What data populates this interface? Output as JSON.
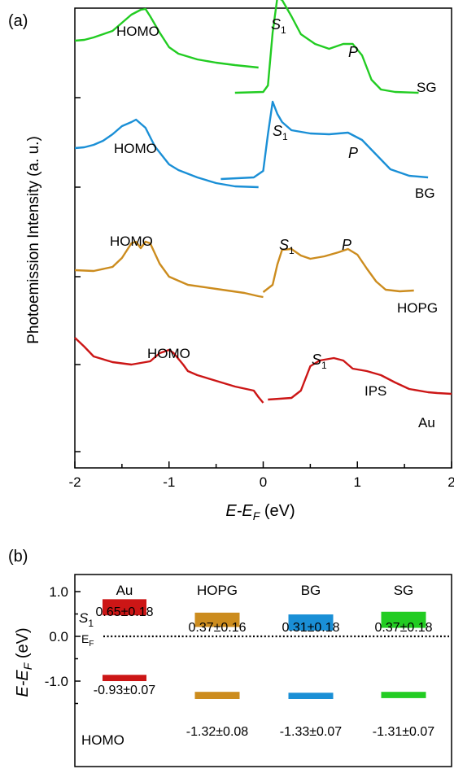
{
  "panel_a": {
    "panel_label": "(a)",
    "ylabel": "Photoemission Intensity (a. u.)",
    "xlabel_main": "E-E",
    "xlabel_sub": "F",
    "xlabel_unit": " (eV)",
    "xticks": [
      "-2",
      "-1",
      "0",
      "1",
      "2"
    ]
  },
  "panel_b": {
    "panel_label": "(b)",
    "ylabel_main": "E-E",
    "ylabel_sub": "F",
    "ylabel_unit": " (eV)",
    "yticks": [
      "1.0",
      "0.0",
      "-1.0"
    ],
    "ef_label_main": "E",
    "ef_label_sub": "F",
    "s1_label_main": "S",
    "s1_label_sub": "1",
    "homo_label": "HOMO"
  },
  "chart_data": [
    {
      "type": "line",
      "xlabel": "E-E_F (eV)",
      "ylabel": "Photoemission Intensity (a. u.)",
      "xlim": [
        -2,
        2
      ],
      "series": [
        {
          "name": "SG",
          "color": "#22cc22",
          "labels": {
            "homo": "HOMO",
            "s1": "S",
            "p": "P"
          },
          "segments": [
            [
              [
                -2.0,
                0.9
              ],
              [
                -1.9,
                0.91
              ],
              [
                -1.8,
                0.94
              ],
              [
                -1.7,
                0.98
              ],
              [
                -1.6,
                1.02
              ],
              [
                -1.5,
                1.12
              ],
              [
                -1.4,
                1.22
              ],
              [
                -1.3,
                1.28
              ],
              [
                -1.25,
                1.29
              ],
              [
                -1.2,
                1.2
              ],
              [
                -1.1,
                1.0
              ],
              [
                -1.0,
                0.82
              ],
              [
                -0.9,
                0.74
              ],
              [
                -0.7,
                0.67
              ],
              [
                -0.5,
                0.63
              ],
              [
                -0.3,
                0.6
              ],
              [
                -0.05,
                0.57
              ]
            ],
            [
              [
                -0.3,
                0.26
              ],
              [
                0.0,
                0.27
              ],
              [
                0.05,
                0.35
              ],
              [
                0.1,
                1.0
              ],
              [
                0.15,
                1.43
              ],
              [
                0.2,
                1.4
              ],
              [
                0.3,
                1.2
              ],
              [
                0.4,
                0.98
              ],
              [
                0.55,
                0.86
              ],
              [
                0.7,
                0.8
              ],
              [
                0.85,
                0.86
              ],
              [
                0.95,
                0.86
              ],
              [
                1.05,
                0.72
              ],
              [
                1.15,
                0.42
              ],
              [
                1.25,
                0.3
              ],
              [
                1.4,
                0.27
              ],
              [
                1.65,
                0.26
              ]
            ]
          ]
        },
        {
          "name": "BG",
          "color": "#1a8fd6",
          "labels": {
            "homo": "HOMO",
            "s1": "S",
            "p": "P"
          },
          "segments": [
            [
              [
                -2.0,
                0.88
              ],
              [
                -1.9,
                0.89
              ],
              [
                -1.8,
                0.92
              ],
              [
                -1.7,
                0.97
              ],
              [
                -1.6,
                1.05
              ],
              [
                -1.5,
                1.15
              ],
              [
                -1.4,
                1.2
              ],
              [
                -1.35,
                1.23
              ],
              [
                -1.25,
                1.13
              ],
              [
                -1.15,
                0.9
              ],
              [
                -1.0,
                0.68
              ],
              [
                -0.9,
                0.61
              ],
              [
                -0.7,
                0.52
              ],
              [
                -0.5,
                0.45
              ],
              [
                -0.3,
                0.41
              ],
              [
                -0.05,
                0.4
              ]
            ],
            [
              [
                -0.45,
                0.5
              ],
              [
                -0.1,
                0.52
              ],
              [
                0.0,
                0.6
              ],
              [
                0.05,
                1.05
              ],
              [
                0.1,
                1.45
              ],
              [
                0.15,
                1.3
              ],
              [
                0.2,
                1.2
              ],
              [
                0.3,
                1.1
              ],
              [
                0.5,
                1.06
              ],
              [
                0.7,
                1.05
              ],
              [
                0.9,
                1.07
              ],
              [
                1.05,
                0.98
              ],
              [
                1.2,
                0.8
              ],
              [
                1.35,
                0.62
              ],
              [
                1.55,
                0.54
              ],
              [
                1.75,
                0.52
              ]
            ]
          ]
        },
        {
          "name": "HOPG",
          "color": "#cc8c1e",
          "labels": {
            "homo": "HOMO",
            "s1": "S",
            "p": "P",
            "s1_sub": "1"
          },
          "segments": [
            [
              [
                -2.0,
                0.68
              ],
              [
                -1.8,
                0.67
              ],
              [
                -1.6,
                0.72
              ],
              [
                -1.5,
                0.83
              ],
              [
                -1.4,
                1.01
              ],
              [
                -1.35,
                1.03
              ],
              [
                -1.3,
                0.95
              ],
              [
                -1.25,
                1.03
              ],
              [
                -1.2,
                1.01
              ],
              [
                -1.1,
                0.76
              ],
              [
                -1.0,
                0.6
              ],
              [
                -0.8,
                0.5
              ],
              [
                -0.5,
                0.45
              ],
              [
                -0.2,
                0.4
              ],
              [
                -0.05,
                0.36
              ],
              [
                0.0,
                0.35
              ]
            ],
            [
              [
                0.0,
                0.41
              ],
              [
                0.1,
                0.5
              ],
              [
                0.15,
                0.75
              ],
              [
                0.2,
                0.93
              ],
              [
                0.3,
                0.94
              ],
              [
                0.4,
                0.86
              ],
              [
                0.5,
                0.82
              ],
              [
                0.65,
                0.85
              ],
              [
                0.8,
                0.9
              ],
              [
                0.9,
                0.94
              ],
              [
                1.0,
                0.87
              ],
              [
                1.1,
                0.7
              ],
              [
                1.2,
                0.54
              ],
              [
                1.3,
                0.44
              ],
              [
                1.45,
                0.42
              ],
              [
                1.6,
                0.43
              ]
            ]
          ]
        },
        {
          "name": "Au",
          "color": "#cc1616",
          "labels": {
            "homo": "HOMO",
            "s1": "S",
            "p": "IPS",
            "s1_sub": "1"
          },
          "segments": [
            [
              [
                -2.0,
                1.33
              ],
              [
                -1.9,
                1.22
              ],
              [
                -1.8,
                1.1
              ],
              [
                -1.6,
                1.03
              ],
              [
                -1.4,
                1.0
              ],
              [
                -1.2,
                1.04
              ],
              [
                -1.1,
                1.14
              ],
              [
                -1.0,
                1.18
              ],
              [
                -0.95,
                1.14
              ],
              [
                -0.85,
                1.0
              ],
              [
                -0.8,
                0.92
              ],
              [
                -0.7,
                0.87
              ],
              [
                -0.5,
                0.8
              ],
              [
                -0.3,
                0.73
              ],
              [
                -0.1,
                0.68
              ],
              [
                -0.05,
                0.6
              ],
              [
                0.0,
                0.53
              ]
            ],
            [
              [
                0.05,
                0.57
              ],
              [
                0.3,
                0.59
              ],
              [
                0.4,
                0.68
              ],
              [
                0.5,
                0.98
              ],
              [
                0.6,
                1.05
              ],
              [
                0.75,
                1.08
              ],
              [
                0.85,
                1.05
              ],
              [
                0.95,
                0.95
              ],
              [
                1.1,
                0.92
              ],
              [
                1.25,
                0.87
              ],
              [
                1.4,
                0.78
              ],
              [
                1.55,
                0.7
              ],
              [
                1.75,
                0.66
              ],
              [
                1.85,
                0.65
              ],
              [
                2.0,
                0.64
              ]
            ]
          ]
        }
      ],
      "curve_labels": {
        "SG": "SG",
        "BG": "BG",
        "HOPG": "HOPG",
        "Au": "Au"
      }
    },
    {
      "type": "bar",
      "ylabel": "E-E_F (eV)",
      "ylim": [
        -1.5,
        1.5
      ],
      "yticks": [
        1.0,
        0.0,
        -1.0
      ],
      "categories": [
        "Au",
        "HOPG",
        "BG",
        "SG"
      ],
      "colors": [
        "#cc1616",
        "#cc8c1e",
        "#1a8fd6",
        "#22cc22"
      ],
      "s1": {
        "values": [
          0.65,
          0.37,
          0.31,
          0.37
        ],
        "errors": [
          0.18,
          0.16,
          0.18,
          0.18
        ],
        "labels": [
          "0.65±0.18",
          "0.37±0.16",
          "0.31±0.18",
          "0.37±0.18"
        ]
      },
      "homo": {
        "values": [
          -0.93,
          -1.32,
          -1.33,
          -1.31
        ],
        "errors": [
          0.07,
          0.08,
          0.07,
          0.07
        ],
        "labels": [
          "-0.93±0.07",
          "-1.32±0.08",
          "-1.33±0.07",
          "-1.31±0.07"
        ]
      },
      "fermi_line": 0.0
    }
  ]
}
